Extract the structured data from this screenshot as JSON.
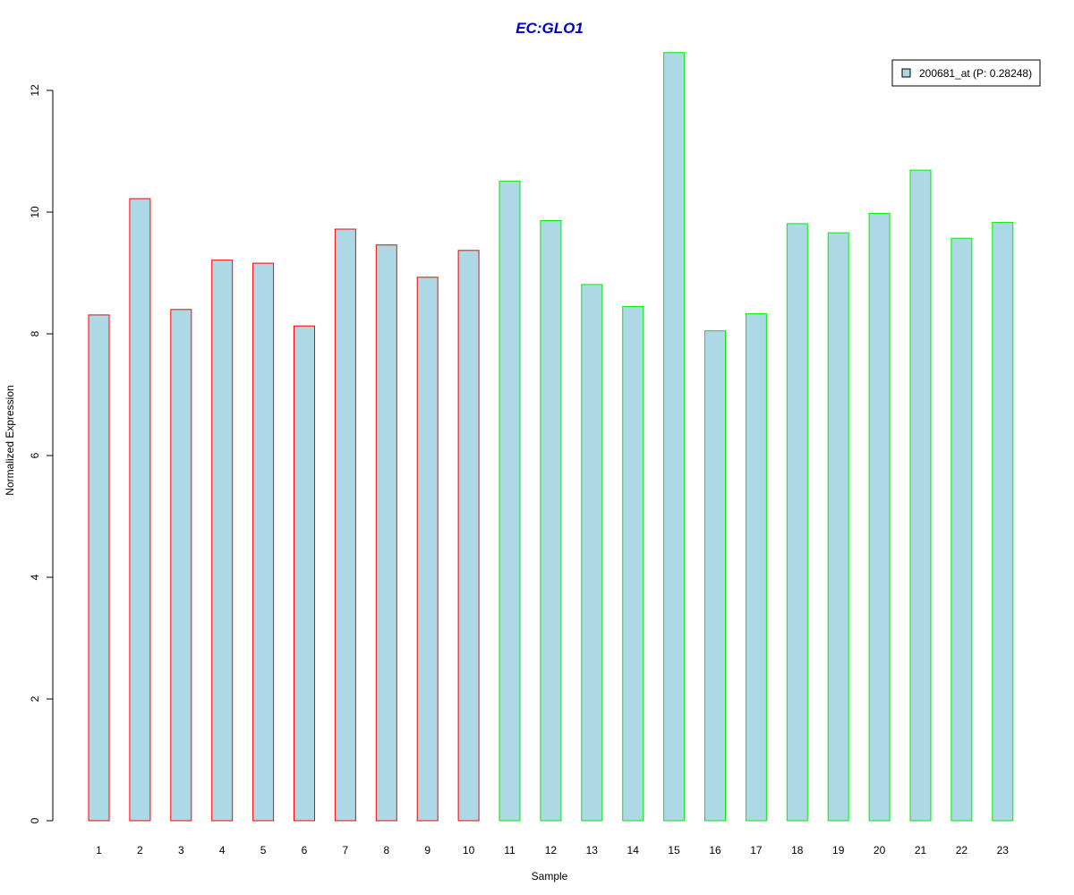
{
  "chart_data": {
    "type": "bar",
    "title": "EC:GLO1",
    "xlabel": "Sample",
    "ylabel": "Normalized Expression",
    "categories": [
      "1",
      "2",
      "3",
      "4",
      "5",
      "6",
      "7",
      "8",
      "9",
      "10",
      "11",
      "12",
      "13",
      "14",
      "15",
      "16",
      "17",
      "18",
      "19",
      "20",
      "21",
      "22",
      "23"
    ],
    "series": [
      {
        "name": "200681_at (P: 0.28248)",
        "values": [
          8.31,
          10.22,
          8.4,
          9.21,
          9.16,
          8.13,
          9.72,
          9.46,
          8.93,
          9.37,
          10.51,
          9.86,
          8.81,
          8.45,
          12.62,
          8.05,
          8.33,
          9.81,
          9.66,
          9.98,
          10.69,
          9.57,
          9.83
        ]
      }
    ],
    "group_border_colors": [
      "#ff0000",
      "#ff0000",
      "#ff0000",
      "#ff0000",
      "#ff0000",
      "#ff0000",
      "#ff0000",
      "#ff0000",
      "#ff0000",
      "#ff0000",
      "#00ee00",
      "#00ee00",
      "#00ee00",
      "#00ee00",
      "#00ee00",
      "#00ee00",
      "#00ee00",
      "#00ee00",
      "#00ee00",
      "#00ee00",
      "#00ee00",
      "#00ee00",
      "#00ee00"
    ],
    "ylim": [
      0,
      12
    ],
    "yticks": [
      0,
      2,
      4,
      6,
      8,
      10,
      12
    ],
    "grid": false,
    "legend_position": "top-right"
  },
  "colors": {
    "bar_fill": "#add8e6",
    "title": "#0000cc",
    "legend_border": "#000000"
  }
}
